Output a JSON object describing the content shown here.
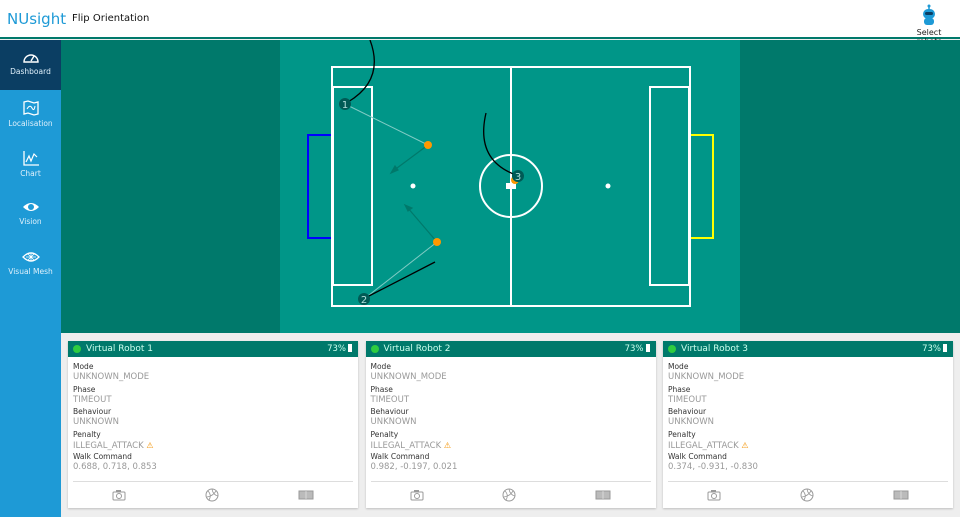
{
  "header": {
    "logo": "NUsight",
    "title": "Flip Orientation",
    "select_robots": "Select robots"
  },
  "sidebar": {
    "items": [
      {
        "label": "Dashboard",
        "icon": "dashboard-icon",
        "active": true
      },
      {
        "label": "Localisation",
        "icon": "map-icon"
      },
      {
        "label": "Chart",
        "icon": "chart-icon"
      },
      {
        "label": "Vision",
        "icon": "eye-icon"
      },
      {
        "label": "Visual Mesh",
        "icon": "mesh-icon"
      }
    ]
  },
  "field": {
    "robots": [
      {
        "label": "1"
      },
      {
        "label": "2"
      },
      {
        "label": "3"
      }
    ],
    "colors": {
      "blue_goal": "#0000ff",
      "yellow_goal": "#ffff00",
      "ball": "#ff9800",
      "field": "#009688"
    }
  },
  "robots": [
    {
      "name": "Virtual Robot 1",
      "battery": "73%",
      "mode_label": "Mode",
      "mode": "UNKNOWN_MODE",
      "phase_label": "Phase",
      "phase": "TIMEOUT",
      "behaviour_label": "Behaviour",
      "behaviour": "UNKNOWN",
      "penalty_label": "Penalty",
      "penalty": "ILLEGAL_ATTACK",
      "walk_label": "Walk Command",
      "walk": "0.688, 0.718, 0.853"
    },
    {
      "name": "Virtual Robot 2",
      "battery": "73%",
      "mode_label": "Mode",
      "mode": "UNKNOWN_MODE",
      "phase_label": "Phase",
      "phase": "TIMEOUT",
      "behaviour_label": "Behaviour",
      "behaviour": "UNKNOWN",
      "penalty_label": "Penalty",
      "penalty": "ILLEGAL_ATTACK",
      "walk_label": "Walk Command",
      "walk": "0.982, -0.197, 0.021"
    },
    {
      "name": "Virtual Robot 3",
      "battery": "73%",
      "mode_label": "Mode",
      "mode": "UNKNOWN_MODE",
      "phase_label": "Phase",
      "phase": "TIMEOUT",
      "behaviour_label": "Behaviour",
      "behaviour": "UNKNOWN",
      "penalty_label": "Penalty",
      "penalty": "ILLEGAL_ATTACK",
      "walk_label": "Walk Command",
      "walk": "0.374, -0.931, -0.830"
    }
  ]
}
